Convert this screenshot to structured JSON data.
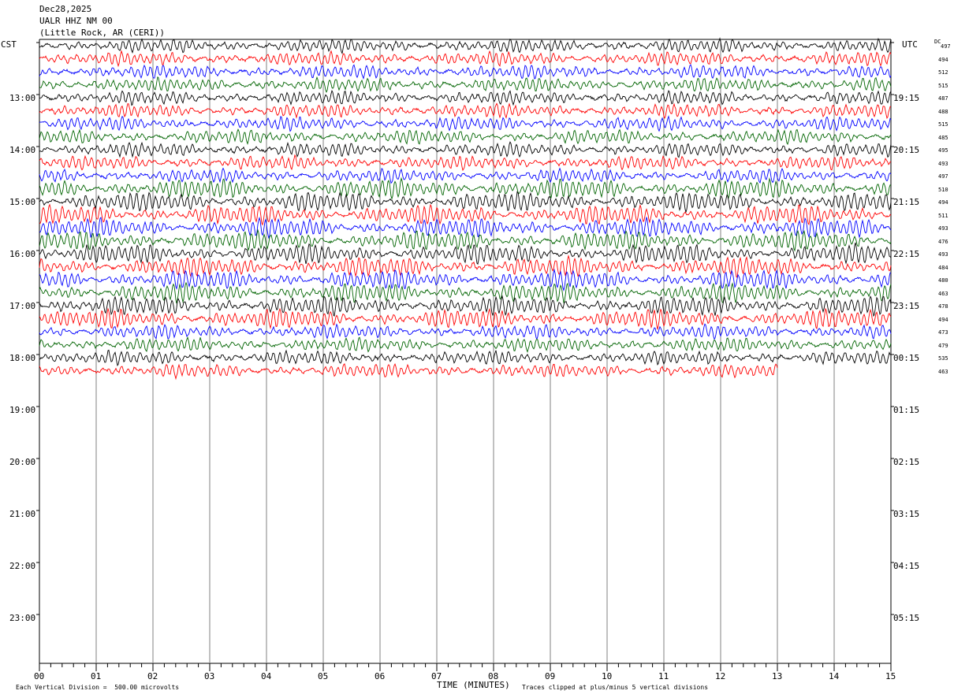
{
  "header": {
    "date": "Dec28,2025",
    "station": "UALR HHZ NM 00",
    "location": "(Little Rock, AR (CERI))"
  },
  "axis_labels": {
    "left_zone": "CST",
    "right_zone": "UTC",
    "dc": "DC",
    "xlabel": "TIME (MINUTES)"
  },
  "footer": {
    "scale_note": "Each Vertical Division =  500.00 microvolts",
    "clip_note": "Traces clipped at plus/minus 5 vertical divisions"
  },
  "colors": {
    "trace_cycle": [
      "#000000",
      "#ff0000",
      "#0000ff",
      "#006400"
    ],
    "grid": "#808080"
  },
  "chart_data": {
    "type": "line",
    "description_type": "helicorder",
    "x_range_minutes": [
      0,
      15
    ],
    "x_ticks": [
      "00",
      "01",
      "02",
      "03",
      "04",
      "05",
      "06",
      "07",
      "08",
      "09",
      "10",
      "11",
      "12",
      "13",
      "14",
      "15"
    ],
    "left_hour_labels": [
      "13:00",
      "14:00",
      "15:00",
      "16:00",
      "17:00",
      "18:00",
      "19:00",
      "20:00",
      "21:00",
      "22:00",
      "23:00"
    ],
    "right_hour_labels": [
      "19:15",
      "20:15",
      "21:15",
      "22:15",
      "23:15",
      "00:15",
      "01:15",
      "02:15",
      "03:15",
      "04:15",
      "05:15"
    ],
    "dc_offsets": [
      497,
      494,
      512,
      515,
      487,
      488,
      515,
      485,
      495,
      493,
      497,
      510,
      494,
      511,
      493,
      476,
      493,
      484,
      480,
      463,
      478,
      494,
      473,
      479,
      535,
      463
    ],
    "trace_count": 26,
    "last_trace_end_minute": 13.0,
    "rows_per_hour": 4
  }
}
